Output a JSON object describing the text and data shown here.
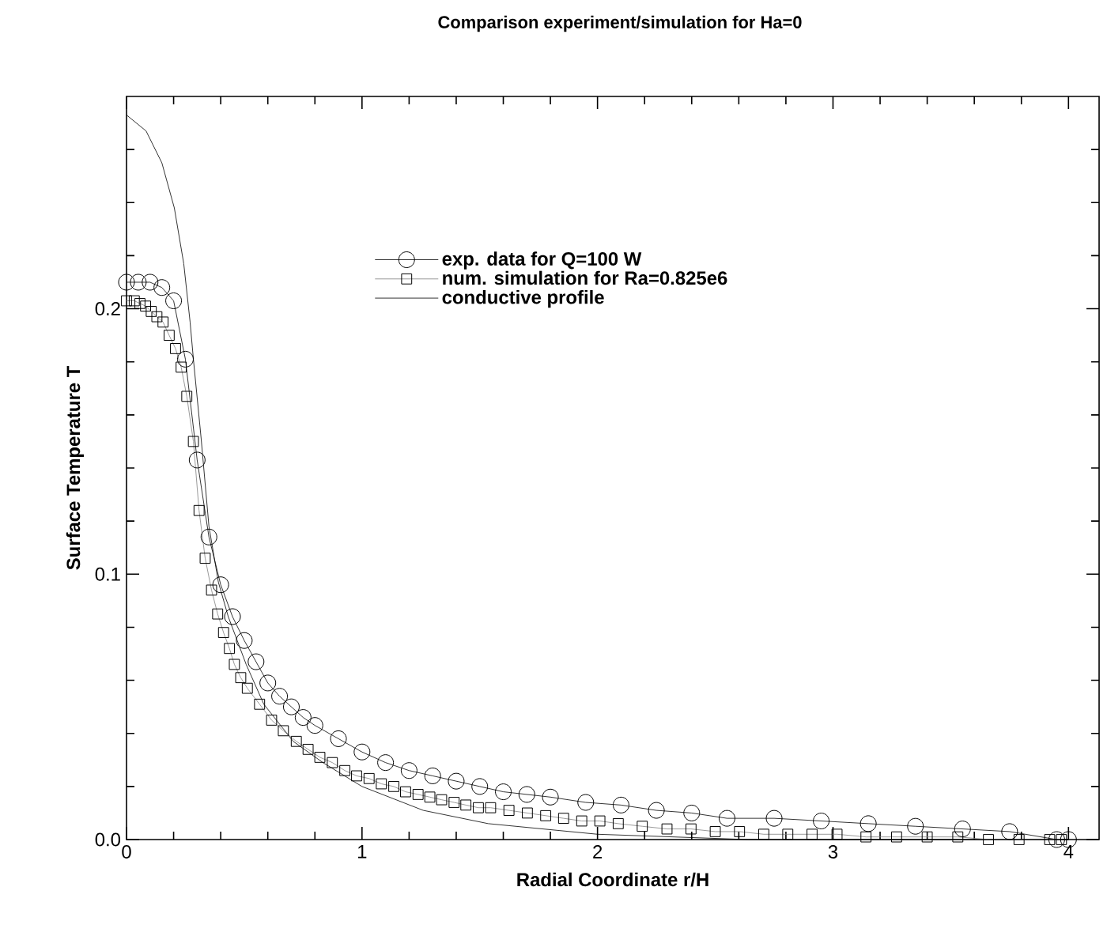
{
  "chart_data": {
    "type": "line",
    "title": "Comparison experiment/simulation for Ha=0",
    "xlabel": "Radial Coordinate r/H",
    "ylabel": "Surface Temperature T",
    "xlim": [
      0,
      4.13
    ],
    "ylim": [
      0,
      0.28
    ],
    "xticks": [
      0,
      {
        "value": 0.2,
        "label": null
      },
      {
        "value": 0.4,
        "label": null
      },
      {
        "value": 0.6,
        "label": null
      },
      {
        "value": 0.8,
        "label": null
      },
      1,
      {
        "value": 1.2,
        "label": null
      },
      {
        "value": 1.4,
        "label": null
      },
      {
        "value": 1.6,
        "label": null
      },
      {
        "value": 1.8,
        "label": null
      },
      2,
      {
        "value": 2.2,
        "label": null
      },
      {
        "value": 2.4,
        "label": null
      },
      {
        "value": 2.6,
        "label": null
      },
      {
        "value": 2.8,
        "label": null
      },
      3,
      {
        "value": 3.2,
        "label": null
      },
      {
        "value": 3.4,
        "label": null
      },
      {
        "value": 3.6,
        "label": null
      },
      {
        "value": 3.8,
        "label": null
      },
      4
    ],
    "yticks": [
      {
        "value": 0,
        "label": "0.0"
      },
      {
        "value": 0.02,
        "label": null
      },
      {
        "value": 0.04,
        "label": null
      },
      {
        "value": 0.06,
        "label": null
      },
      {
        "value": 0.08,
        "label": null
      },
      {
        "value": 0.1,
        "label": "0.1"
      },
      {
        "value": 0.12,
        "label": null
      },
      {
        "value": 0.14,
        "label": null
      },
      {
        "value": 0.16,
        "label": null
      },
      {
        "value": 0.18,
        "label": null
      },
      {
        "value": 0.2,
        "label": "0.2"
      },
      {
        "value": 0.22,
        "label": null
      },
      {
        "value": 0.24,
        "label": null
      },
      {
        "value": 0.26,
        "label": null
      }
    ],
    "legend": "top",
    "line_style": "solid",
    "series": [
      {
        "name": "exp. data for Q=100 W",
        "color": "#000000",
        "marker": "circle",
        "x": [
          0,
          0.05,
          0.1,
          0.15,
          0.2,
          0.25,
          0.3,
          0.35,
          0.4,
          0.45,
          0.5,
          0.55,
          0.6,
          0.65,
          0.7,
          0.75,
          0.8,
          0.9,
          1.0,
          1.1,
          1.2,
          1.3,
          1.4,
          1.5,
          1.6,
          1.7,
          1.8,
          1.95,
          2.1,
          2.25,
          2.4,
          2.55,
          2.75,
          2.95,
          3.15,
          3.35,
          3.55,
          3.75,
          3.95,
          4.0
        ],
        "values": [
          0.21,
          0.21,
          0.21,
          0.208,
          0.203,
          0.181,
          0.143,
          0.114,
          0.096,
          0.084,
          0.075,
          0.067,
          0.059,
          0.054,
          0.05,
          0.046,
          0.043,
          0.038,
          0.033,
          0.029,
          0.026,
          0.024,
          0.022,
          0.02,
          0.018,
          0.017,
          0.016,
          0.014,
          0.013,
          0.011,
          0.01,
          0.008,
          0.008,
          0.007,
          0.006,
          0.005,
          0.004,
          0.003,
          0.0,
          0.0
        ]
      },
      {
        "name": "num. simulation for Ra=0.825e6",
        "color": "#808080",
        "marker": "square",
        "x": [
          0,
          0.033,
          0.057,
          0.081,
          0.105,
          0.129,
          0.155,
          0.181,
          0.208,
          0.232,
          0.256,
          0.284,
          0.308,
          0.334,
          0.361,
          0.387,
          0.412,
          0.437,
          0.458,
          0.485,
          0.513,
          0.565,
          0.616,
          0.666,
          0.721,
          0.771,
          0.821,
          0.874,
          0.927,
          0.977,
          1.03,
          1.082,
          1.135,
          1.185,
          1.238,
          1.288,
          1.338,
          1.391,
          1.441,
          1.494,
          1.546,
          1.624,
          1.702,
          1.78,
          1.856,
          1.933,
          2.01,
          2.088,
          2.19,
          2.295,
          2.397,
          2.5,
          2.603,
          2.706,
          2.808,
          2.911,
          3.017,
          3.14,
          3.27,
          3.4,
          3.53,
          3.66,
          3.79,
          3.92,
          3.97
        ],
        "values": [
          0.203,
          0.203,
          0.202,
          0.201,
          0.199,
          0.197,
          0.195,
          0.19,
          0.185,
          0.178,
          0.167,
          0.15,
          0.124,
          0.106,
          0.094,
          0.085,
          0.078,
          0.072,
          0.066,
          0.061,
          0.057,
          0.051,
          0.045,
          0.041,
          0.037,
          0.034,
          0.031,
          0.029,
          0.026,
          0.024,
          0.023,
          0.021,
          0.02,
          0.018,
          0.017,
          0.016,
          0.015,
          0.014,
          0.013,
          0.012,
          0.012,
          0.011,
          0.01,
          0.009,
          0.008,
          0.007,
          0.007,
          0.006,
          0.005,
          0.004,
          0.004,
          0.003,
          0.003,
          0.002,
          0.002,
          0.002,
          0.002,
          0.001,
          0.001,
          0.001,
          0.001,
          0.0,
          0.0,
          0.0,
          0.0
        ]
      },
      {
        "name": "conductive profile",
        "color": "#000000",
        "marker": "none",
        "x": [
          0,
          0.083,
          0.15,
          0.203,
          0.243,
          0.27,
          0.284,
          0.317,
          0.35,
          0.39,
          0.432,
          0.508,
          0.583,
          0.708,
          0.834,
          1.0,
          1.26,
          1.536,
          2.0,
          2.64,
          4.0
        ],
        "values": [
          0.273,
          0.267,
          0.255,
          0.238,
          0.217,
          0.195,
          0.181,
          0.151,
          0.118,
          0.097,
          0.084,
          0.066,
          0.051,
          0.037,
          0.029,
          0.02,
          0.011,
          0.006,
          0.002,
          0.0,
          0.0
        ]
      }
    ]
  }
}
